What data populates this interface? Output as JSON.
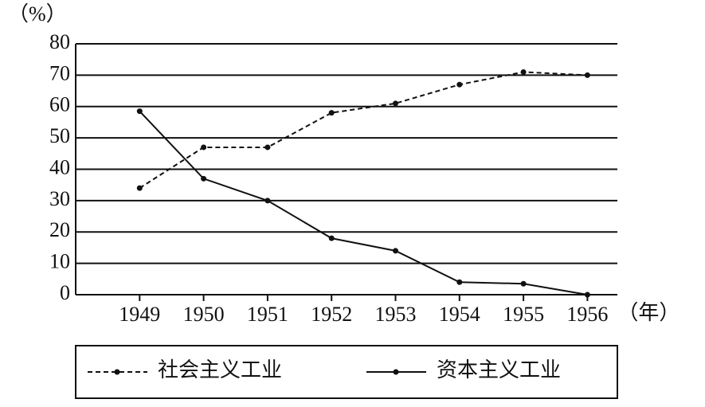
{
  "chart_data": {
    "type": "line",
    "y_label": "（%）",
    "x_label": "（年）",
    "categories": [
      "1949",
      "1950",
      "1951",
      "1952",
      "1953",
      "1954",
      "1955",
      "1956"
    ],
    "series": [
      {
        "name": "社会主义工业",
        "color": "#111111",
        "line_style": "dashed",
        "values": [
          34,
          47,
          47,
          58,
          61,
          67,
          71,
          70
        ]
      },
      {
        "name": "资本主义工业",
        "color": "#111111",
        "line_style": "solid",
        "values": [
          58.5,
          37,
          30,
          18,
          14,
          4,
          3.5,
          0
        ]
      }
    ],
    "ylim": [
      0,
      80
    ],
    "yticks": [
      0,
      10,
      20,
      30,
      40,
      50,
      60,
      70,
      80
    ],
    "grid": true,
    "legend": "bottom"
  }
}
